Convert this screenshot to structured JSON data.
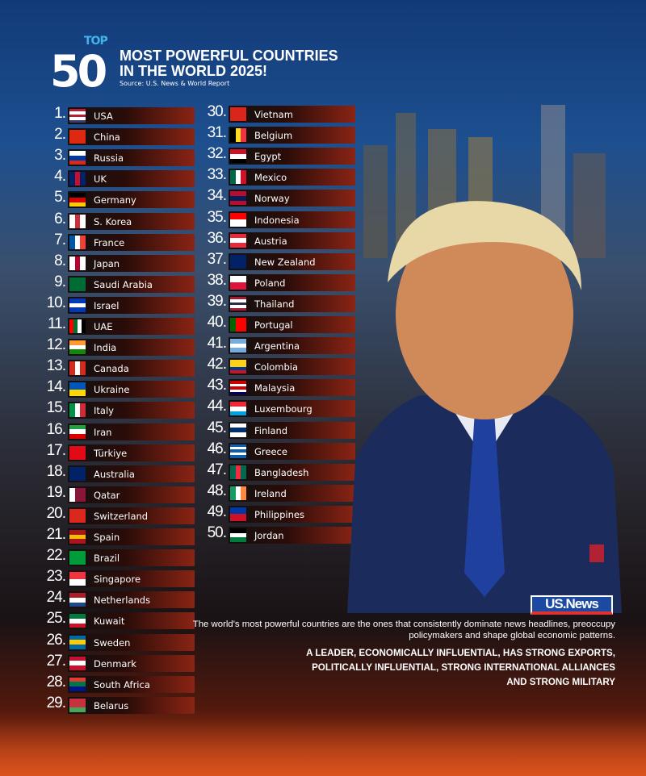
{
  "header": {
    "top": "TOP",
    "number": "50",
    "title_line1": "MOST POWERFUL COUNTRIES",
    "title_line2": "IN THE WORLD 2025!",
    "source": "Source: U.S. News & World Report"
  },
  "countries": [
    {
      "rank": "1.",
      "name": "USA",
      "flag": [
        "#b22234",
        "#fff",
        "#b22234",
        "#fff",
        "#3c3b6e"
      ],
      "dir": "column"
    },
    {
      "rank": "2.",
      "name": "China",
      "flag": [
        "#de2910"
      ],
      "dir": "row"
    },
    {
      "rank": "3.",
      "name": "Russia",
      "flag": [
        "#fff",
        "#0039a6",
        "#d52b1e"
      ],
      "dir": "column"
    },
    {
      "rank": "4.",
      "name": "UK",
      "flag": [
        "#012169",
        "#c8102e",
        "#012169"
      ],
      "dir": "row"
    },
    {
      "rank": "5.",
      "name": "Germany",
      "flag": [
        "#000",
        "#dd0000",
        "#ffce00"
      ],
      "dir": "column"
    },
    {
      "rank": "6.",
      "name": "S. Korea",
      "flag": [
        "#fff",
        "#cd2e3a",
        "#fff"
      ],
      "dir": "row"
    },
    {
      "rank": "7.",
      "name": "France",
      "flag": [
        "#0055a4",
        "#fff",
        "#ef4135"
      ],
      "dir": "row"
    },
    {
      "rank": "8.",
      "name": "Japan",
      "flag": [
        "#fff",
        "#bc002d",
        "#fff"
      ],
      "dir": "row"
    },
    {
      "rank": "9.",
      "name": "Saudi Arabia",
      "flag": [
        "#006c35"
      ],
      "dir": "row"
    },
    {
      "rank": "10.",
      "name": "Israel",
      "flag": [
        "#0038b8",
        "#fff",
        "#0038b8"
      ],
      "dir": "column"
    },
    {
      "rank": "11.",
      "name": "UAE",
      "flag": [
        "#ff0000",
        "#00732f",
        "#fff",
        "#000"
      ],
      "dir": "row"
    },
    {
      "rank": "12.",
      "name": "India",
      "flag": [
        "#ff9933",
        "#fff",
        "#138808"
      ],
      "dir": "column"
    },
    {
      "rank": "13.",
      "name": "Canada",
      "flag": [
        "#d52b1e",
        "#fff",
        "#d52b1e"
      ],
      "dir": "row"
    },
    {
      "rank": "14.",
      "name": "Ukraine",
      "flag": [
        "#0057b7",
        "#ffd700"
      ],
      "dir": "column"
    },
    {
      "rank": "15.",
      "name": "Italy",
      "flag": [
        "#009246",
        "#fff",
        "#ce2b37"
      ],
      "dir": "row"
    },
    {
      "rank": "16.",
      "name": "Iran",
      "flag": [
        "#239f40",
        "#fff",
        "#da0000"
      ],
      "dir": "column"
    },
    {
      "rank": "17.",
      "name": "Türkiye",
      "flag": [
        "#e30a17"
      ],
      "dir": "row"
    },
    {
      "rank": "18.",
      "name": "Australia",
      "flag": [
        "#012169"
      ],
      "dir": "row"
    },
    {
      "rank": "19.",
      "name": "Qatar",
      "flag": [
        "#fff",
        "#8a1538",
        "#8a1538"
      ],
      "dir": "row"
    },
    {
      "rank": "20.",
      "name": "Switzerland",
      "flag": [
        "#da291c"
      ],
      "dir": "row"
    },
    {
      "rank": "21.",
      "name": "Spain",
      "flag": [
        "#aa151b",
        "#f1bf00",
        "#aa151b"
      ],
      "dir": "column"
    },
    {
      "rank": "22.",
      "name": "Brazil",
      "flag": [
        "#009c3b"
      ],
      "dir": "row"
    },
    {
      "rank": "23.",
      "name": "Singapore",
      "flag": [
        "#ef3340",
        "#fff"
      ],
      "dir": "column"
    },
    {
      "rank": "24.",
      "name": "Netherlands",
      "flag": [
        "#ae1c28",
        "#fff",
        "#21468b"
      ],
      "dir": "column"
    },
    {
      "rank": "25.",
      "name": "Kuwait",
      "flag": [
        "#007a3d",
        "#fff",
        "#ce1126"
      ],
      "dir": "column"
    },
    {
      "rank": "26.",
      "name": "Sweden",
      "flag": [
        "#006aa7",
        "#fecc00",
        "#006aa7"
      ],
      "dir": "column"
    },
    {
      "rank": "27.",
      "name": "Denmark",
      "flag": [
        "#c8102e",
        "#fff",
        "#c8102e"
      ],
      "dir": "column"
    },
    {
      "rank": "28.",
      "name": "South Africa",
      "flag": [
        "#e03c31",
        "#007749",
        "#001489"
      ],
      "dir": "column"
    },
    {
      "rank": "29.",
      "name": "Belarus",
      "flag": [
        "#c8313e",
        "#c8313e",
        "#4aa657"
      ],
      "dir": "column"
    },
    {
      "rank": "30.",
      "name": "Vietnam",
      "flag": [
        "#da251d"
      ],
      "dir": "row"
    },
    {
      "rank": "31.",
      "name": "Belgium",
      "flag": [
        "#000",
        "#fdda24",
        "#ef3340"
      ],
      "dir": "row"
    },
    {
      "rank": "32.",
      "name": "Egypt",
      "flag": [
        "#ce1126",
        "#fff",
        "#000"
      ],
      "dir": "column"
    },
    {
      "rank": "33.",
      "name": "Mexico",
      "flag": [
        "#006847",
        "#fff",
        "#ce1126"
      ],
      "dir": "row"
    },
    {
      "rank": "34.",
      "name": "Norway",
      "flag": [
        "#ba0c2f",
        "#00205b",
        "#ba0c2f"
      ],
      "dir": "column"
    },
    {
      "rank": "35.",
      "name": "Indonesia",
      "flag": [
        "#ff0000",
        "#fff"
      ],
      "dir": "column"
    },
    {
      "rank": "36.",
      "name": "Austria",
      "flag": [
        "#ed2939",
        "#fff",
        "#ed2939"
      ],
      "dir": "column"
    },
    {
      "rank": "37.",
      "name": "New Zealand",
      "flag": [
        "#012169"
      ],
      "dir": "row"
    },
    {
      "rank": "38.",
      "name": "Poland",
      "flag": [
        "#fff",
        "#dc143c"
      ],
      "dir": "column"
    },
    {
      "rank": "39.",
      "name": "Thailand",
      "flag": [
        "#a51931",
        "#fff",
        "#2d2a4a",
        "#fff",
        "#a51931"
      ],
      "dir": "column"
    },
    {
      "rank": "40.",
      "name": "Portugal",
      "flag": [
        "#006600",
        "#ff0000",
        "#ff0000"
      ],
      "dir": "row"
    },
    {
      "rank": "41.",
      "name": "Argentina",
      "flag": [
        "#74acdf",
        "#fff",
        "#74acdf"
      ],
      "dir": "column"
    },
    {
      "rank": "42.",
      "name": "Colombia",
      "flag": [
        "#fcd116",
        "#fcd116",
        "#003893",
        "#ce1126"
      ],
      "dir": "column"
    },
    {
      "rank": "43.",
      "name": "Malaysia",
      "flag": [
        "#cc0001",
        "#fff",
        "#cc0001",
        "#fff",
        "#010066"
      ],
      "dir": "column"
    },
    {
      "rank": "44.",
      "name": "Luxembourg",
      "flag": [
        "#ed2939",
        "#fff",
        "#00a1de"
      ],
      "dir": "column"
    },
    {
      "rank": "45.",
      "name": "Finland",
      "flag": [
        "#fff",
        "#002f6c",
        "#fff"
      ],
      "dir": "column"
    },
    {
      "rank": "46.",
      "name": "Greece",
      "flag": [
        "#0d5eaf",
        "#fff",
        "#0d5eaf",
        "#fff",
        "#0d5eaf"
      ],
      "dir": "column"
    },
    {
      "rank": "47.",
      "name": "Bangladesh",
      "flag": [
        "#006a4e",
        "#f42a41",
        "#006a4e"
      ],
      "dir": "row"
    },
    {
      "rank": "48.",
      "name": "Ireland",
      "flag": [
        "#169b62",
        "#fff",
        "#ff883e"
      ],
      "dir": "row"
    },
    {
      "rank": "49.",
      "name": "Philippines",
      "flag": [
        "#0038a8",
        "#ce1126"
      ],
      "dir": "column"
    },
    {
      "rank": "50.",
      "name": "Jordan",
      "flag": [
        "#000",
        "#fff",
        "#007a3d"
      ],
      "dir": "column"
    }
  ],
  "footer": {
    "logo": "US.News",
    "description": "The world's most powerful countries are the ones that consistently dominate news headlines, preoccupy policymakers and shape global economic patterns.",
    "criteria_line1": "A LEADER, ECONOMICALLY INFLUENTIAL, HAS STRONG EXPORTS,",
    "criteria_line2": "POLITICALLY INFLUENTIAL, STRONG INTERNATIONAL ALLIANCES",
    "criteria_line3": "AND STRONG MILITARY"
  }
}
